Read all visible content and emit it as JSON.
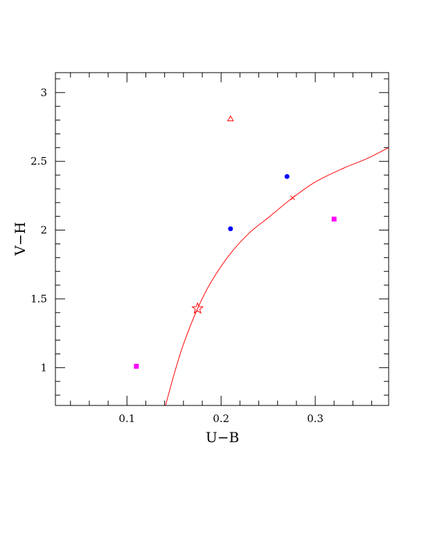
{
  "chart_data": {
    "type": "scatter",
    "xlabel": "U−B",
    "ylabel": "V−H",
    "xlim": [
      0.024,
      0.378
    ],
    "ylim": [
      0.725,
      3.145
    ],
    "x_ticks": [
      {
        "value": 0.1,
        "label": "0.1"
      },
      {
        "value": 0.2,
        "label": "0.2"
      },
      {
        "value": 0.3,
        "label": "0.3"
      }
    ],
    "y_ticks": [
      {
        "value": 1,
        "label": "1"
      },
      {
        "value": 1.5,
        "label": "1.5"
      },
      {
        "value": 2,
        "label": "2"
      },
      {
        "value": 2.5,
        "label": "2.5"
      },
      {
        "value": 3,
        "label": "3"
      }
    ],
    "x_minor_step": 0.02,
    "y_minor_step": 0.1,
    "curve": {
      "color": "#ff0000",
      "points": [
        [
          0.141,
          0.725
        ],
        [
          0.15,
          0.95
        ],
        [
          0.16,
          1.17
        ],
        [
          0.175,
          1.43
        ],
        [
          0.19,
          1.63
        ],
        [
          0.21,
          1.83
        ],
        [
          0.23,
          1.98
        ],
        [
          0.25,
          2.09
        ],
        [
          0.275,
          2.23
        ],
        [
          0.3,
          2.35
        ],
        [
          0.33,
          2.45
        ],
        [
          0.355,
          2.52
        ],
        [
          0.378,
          2.6
        ]
      ]
    },
    "series": [
      {
        "marker": "circle",
        "color": "#0000ff",
        "points": [
          [
            0.21,
            2.01
          ],
          [
            0.27,
            2.39
          ]
        ]
      },
      {
        "marker": "square",
        "color": "#ff00ff",
        "points": [
          [
            0.11,
            1.01
          ],
          [
            0.32,
            2.08
          ]
        ]
      },
      {
        "marker": "triangle",
        "color": "#ff0000",
        "points": [
          [
            0.21,
            2.81
          ]
        ]
      },
      {
        "marker": "star",
        "color": "#ff0000",
        "points": [
          [
            0.175,
            1.43
          ]
        ]
      },
      {
        "marker": "cross",
        "color": "#ff0000",
        "points": [
          [
            0.276,
            2.235
          ]
        ]
      }
    ],
    "grid": false,
    "legend": "none"
  }
}
